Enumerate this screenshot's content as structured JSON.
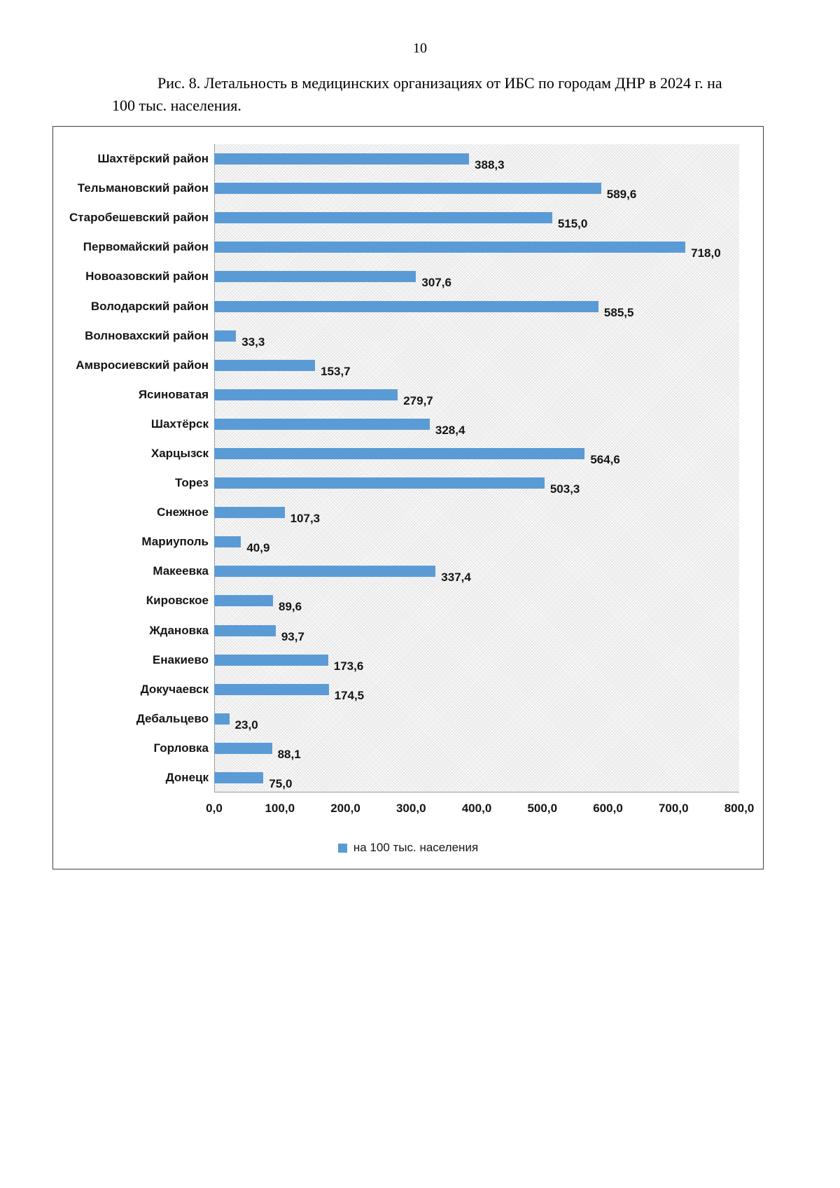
{
  "page": {
    "number": "10",
    "caption": "Рис. 8. Летальность в медицинских организациях от ИБС по городам ДНР в 2024 г. на 100 тыс. населения."
  },
  "chart_data": {
    "type": "bar",
    "orientation": "horizontal",
    "title": "",
    "categories": [
      "Шахтёрский район",
      "Тельмановский район",
      "Старобешевский район",
      "Первомайский район",
      "Новоазовский район",
      "Володарский район",
      "Волновахский район",
      "Амвросиевский район",
      "Ясиноватая",
      "Шахтёрск",
      "Харцызск",
      "Торез",
      "Снежное",
      "Мариуполь",
      "Макеевка",
      "Кировское",
      "Ждановка",
      "Енакиево",
      "Докучаевск",
      "Дебальцево",
      "Горловка",
      "Донецк"
    ],
    "values": [
      388.3,
      589.6,
      515.0,
      718.0,
      307.6,
      585.5,
      33.3,
      153.7,
      279.7,
      328.4,
      564.6,
      503.3,
      107.3,
      40.9,
      337.4,
      89.6,
      93.7,
      173.6,
      174.5,
      23.0,
      88.1,
      75.0
    ],
    "value_labels": [
      "388,3",
      "589,6",
      "515,0",
      "718,0",
      "307,6",
      "585,5",
      "33,3",
      "153,7",
      "279,7",
      "328,4",
      "564,6",
      "503,3",
      "107,3",
      "40,9",
      "337,4",
      "89,6",
      "93,7",
      "173,6",
      "174,5",
      "23,0",
      "88,1",
      "75,0"
    ],
    "xlim": [
      0,
      800
    ],
    "x_ticks": [
      "0,0",
      "100,0",
      "200,0",
      "300,0",
      "400,0",
      "500,0",
      "600,0",
      "700,0",
      "800,0"
    ],
    "legend": "на 100 тыс. населения",
    "legend_position": "bottom",
    "grid": false,
    "bar_color": "#5B9BD5"
  }
}
